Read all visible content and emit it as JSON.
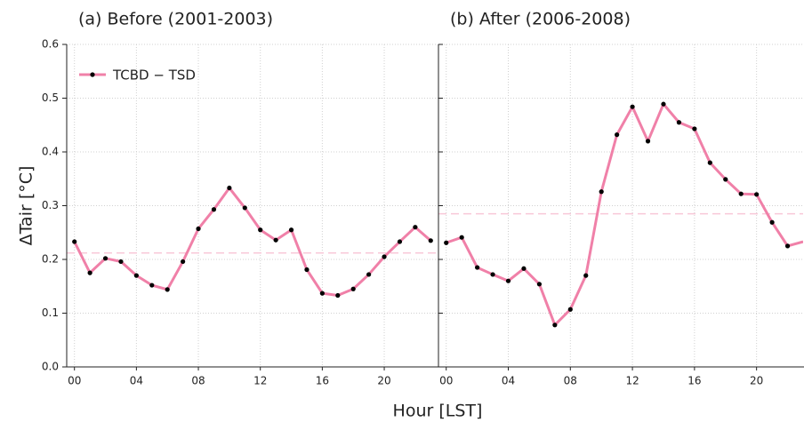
{
  "chart_data": [
    {
      "type": "line",
      "title": "(a) Before (2001-2003)",
      "ylabel": "ΔTair [°C]",
      "xlabel": "Hour [LST]",
      "x": [
        0,
        1,
        2,
        3,
        4,
        5,
        6,
        7,
        8,
        9,
        10,
        11,
        12,
        13,
        14,
        15,
        16,
        17,
        18,
        19,
        20,
        21,
        22,
        23
      ],
      "series": [
        {
          "name": "TCBD − TSD",
          "color": "#f080a8",
          "marker_color": "#000000",
          "values": [
            0.233,
            0.175,
            0.202,
            0.196,
            0.17,
            0.152,
            0.144,
            0.196,
            0.257,
            0.293,
            0.333,
            0.296,
            0.255,
            0.236,
            0.255,
            0.181,
            0.137,
            0.133,
            0.145,
            0.172,
            0.205,
            0.233,
            0.26,
            0.235
          ]
        }
      ],
      "mean_line": 0.212,
      "mean_color": "#f8c8d8",
      "xlim": [
        -0.5,
        23.5
      ],
      "xticks": [
        {
          "value": 0,
          "label": "00"
        },
        {
          "value": 4,
          "label": "04"
        },
        {
          "value": 8,
          "label": "08"
        },
        12,
        16,
        20
      ],
      "ylim": [
        0,
        0.6
      ],
      "yticks": [
        {
          "value": 0,
          "label": "0.0"
        },
        0.1,
        0.2,
        0.3,
        0.4,
        0.5,
        0.6
      ],
      "grid": true,
      "legend": "upper left",
      "show_ytick_labels": true
    },
    {
      "type": "line",
      "title": "(b) After (2006-2008)",
      "x": [
        0,
        1,
        2,
        3,
        4,
        5,
        6,
        7,
        8,
        9,
        10,
        11,
        12,
        13,
        14,
        15,
        16,
        17,
        18,
        19,
        20,
        21,
        22,
        23
      ],
      "series": [
        {
          "color": "#f080a8",
          "marker_color": "#000000",
          "values": [
            0.231,
            0.241,
            0.185,
            0.172,
            0.16,
            0.183,
            0.154,
            0.078,
            0.107,
            0.17,
            0.326,
            0.432,
            0.484,
            0.42,
            0.489,
            0.455,
            0.443,
            0.38,
            0.349,
            0.322,
            0.321,
            0.269,
            0.225,
            0.233
          ]
        }
      ],
      "mean_line": 0.285,
      "mean_color": "#f8c8d8",
      "xlim": [
        -0.5,
        23
      ],
      "xticks": [
        {
          "value": 0,
          "label": "00"
        },
        {
          "value": 4,
          "label": "04"
        },
        {
          "value": 8,
          "label": "08"
        },
        12,
        16,
        20
      ],
      "ylim": [
        0,
        0.6
      ],
      "yticks": [
        {
          "value": 0,
          "label": "0.0"
        },
        0.1,
        0.2,
        0.3,
        0.4,
        0.5,
        0.6
      ],
      "grid": true,
      "show_ytick_labels": false
    }
  ]
}
